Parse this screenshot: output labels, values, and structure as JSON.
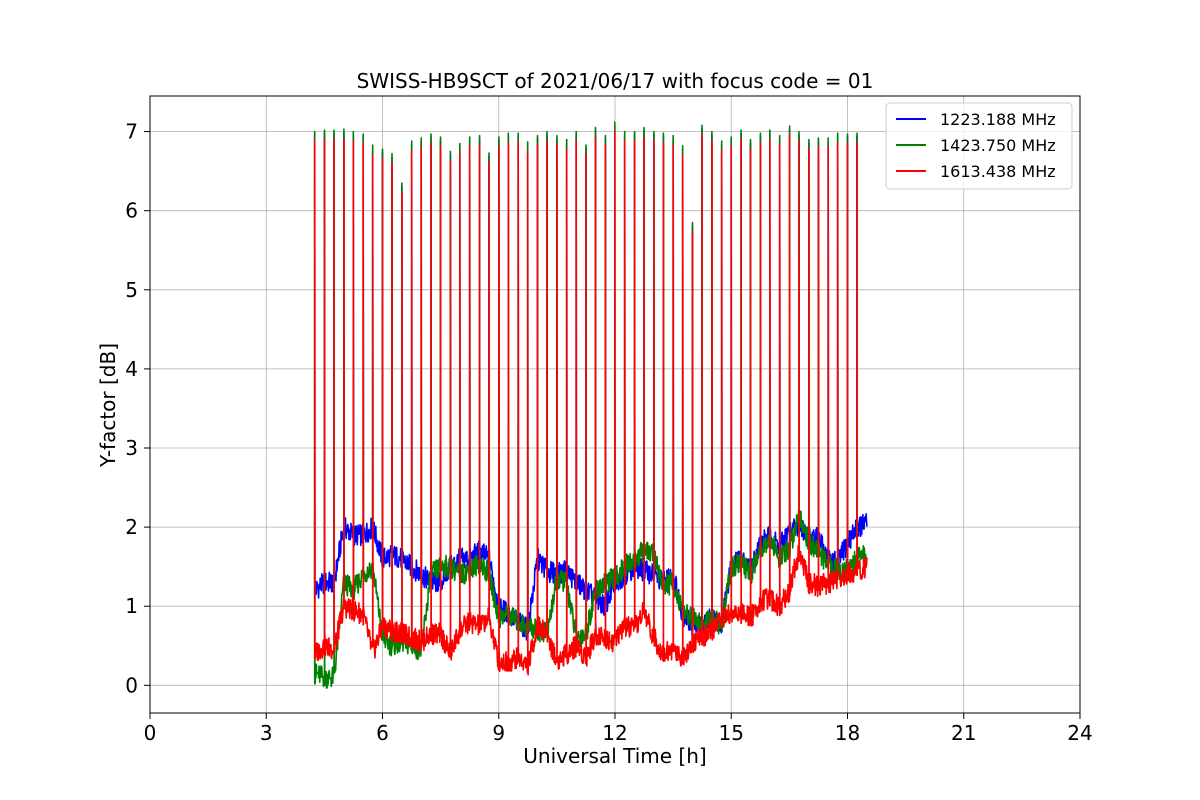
{
  "chart_data": {
    "type": "line",
    "title": "SWISS-HB9SCT of 2021/06/17 with focus code = 01",
    "xlabel": "Universal Time [h]",
    "ylabel": "Y-factor [dB]",
    "xlim": [
      0,
      24
    ],
    "ylim": [
      -0.35,
      7.45
    ],
    "xticks": [
      0,
      3,
      6,
      9,
      12,
      15,
      18,
      21,
      24
    ],
    "yticks": [
      0,
      1,
      2,
      3,
      4,
      5,
      6,
      7
    ],
    "grid": true,
    "legend_position": "top-right",
    "series": [
      {
        "name": "1223.188 MHz",
        "color": "#0000ff",
        "x": [
          4.25,
          4.5,
          4.75,
          5.0,
          5.25,
          5.5,
          5.75,
          6.0,
          6.25,
          6.5,
          6.75,
          7.0,
          7.25,
          7.5,
          7.75,
          8.0,
          8.25,
          8.5,
          8.75,
          9.0,
          9.25,
          9.5,
          9.75,
          10.0,
          10.25,
          10.5,
          10.75,
          11.0,
          11.25,
          11.5,
          11.75,
          12.0,
          12.25,
          12.5,
          12.75,
          13.0,
          13.25,
          13.5,
          13.75,
          14.0,
          14.25,
          14.5,
          14.75,
          15.0,
          15.25,
          15.5,
          15.75,
          16.0,
          16.25,
          16.5,
          16.75,
          17.0,
          17.25,
          17.5,
          17.75,
          18.0,
          18.25,
          18.5
        ],
        "y": [
          1.2,
          1.3,
          1.3,
          2.0,
          1.9,
          1.9,
          2.0,
          1.6,
          1.65,
          1.6,
          1.5,
          1.4,
          1.3,
          1.3,
          1.5,
          1.6,
          1.6,
          1.7,
          1.6,
          1.0,
          0.9,
          0.8,
          0.7,
          1.6,
          1.45,
          1.4,
          1.45,
          1.3,
          1.2,
          1.1,
          1.0,
          1.3,
          1.4,
          1.5,
          1.45,
          1.4,
          1.3,
          1.4,
          0.9,
          0.75,
          0.75,
          0.85,
          0.8,
          1.5,
          1.6,
          1.45,
          1.8,
          1.9,
          1.75,
          1.95,
          2.0,
          1.9,
          1.85,
          1.6,
          1.55,
          1.8,
          2.0,
          2.05
        ]
      },
      {
        "name": "1423.750 MHz",
        "color": "#008000",
        "x": [
          4.25,
          4.5,
          4.75,
          5.0,
          5.25,
          5.5,
          5.75,
          6.0,
          6.25,
          6.5,
          6.75,
          7.0,
          7.25,
          7.5,
          7.75,
          8.0,
          8.25,
          8.5,
          8.75,
          9.0,
          9.25,
          9.5,
          9.75,
          10.0,
          10.25,
          10.5,
          10.75,
          11.0,
          11.25,
          11.5,
          11.75,
          12.0,
          12.25,
          12.5,
          12.75,
          13.0,
          13.25,
          13.5,
          13.75,
          14.0,
          14.25,
          14.5,
          14.75,
          15.0,
          15.25,
          15.5,
          15.75,
          16.0,
          16.25,
          16.5,
          16.75,
          17.0,
          17.25,
          17.5,
          17.75,
          18.0,
          18.25,
          18.5
        ],
        "y": [
          0.15,
          0.1,
          0.1,
          1.3,
          1.2,
          1.4,
          1.5,
          0.6,
          0.5,
          0.55,
          0.5,
          0.45,
          1.4,
          1.5,
          1.5,
          1.4,
          1.45,
          1.55,
          1.4,
          0.85,
          0.9,
          0.8,
          0.75,
          0.7,
          0.65,
          1.35,
          1.3,
          0.6,
          0.65,
          1.2,
          1.3,
          1.35,
          1.5,
          1.6,
          1.7,
          1.65,
          1.25,
          1.3,
          0.9,
          0.85,
          0.75,
          0.85,
          0.75,
          1.5,
          1.55,
          1.4,
          1.75,
          1.85,
          1.6,
          1.7,
          2.2,
          1.8,
          1.7,
          1.5,
          1.45,
          1.45,
          1.6,
          1.65
        ]
      },
      {
        "name": "1613.438 MHz",
        "color": "#ff0000",
        "x": [
          4.25,
          4.5,
          4.75,
          5.0,
          5.25,
          5.5,
          5.75,
          6.0,
          6.25,
          6.5,
          6.75,
          7.0,
          7.25,
          7.5,
          7.75,
          8.0,
          8.25,
          8.5,
          8.75,
          9.0,
          9.25,
          9.5,
          9.75,
          10.0,
          10.25,
          10.5,
          10.75,
          11.0,
          11.25,
          11.5,
          11.75,
          12.0,
          12.25,
          12.5,
          12.75,
          13.0,
          13.25,
          13.5,
          13.75,
          14.0,
          14.25,
          14.5,
          14.75,
          15.0,
          15.25,
          15.5,
          15.75,
          16.0,
          16.25,
          16.5,
          16.75,
          17.0,
          17.25,
          17.5,
          17.75,
          18.0,
          18.25,
          18.5
        ],
        "y": [
          0.4,
          0.5,
          0.45,
          1.0,
          0.95,
          0.9,
          0.4,
          0.75,
          0.7,
          0.65,
          0.6,
          0.55,
          0.65,
          0.65,
          0.4,
          0.7,
          0.8,
          0.75,
          0.85,
          0.3,
          0.3,
          0.35,
          0.25,
          0.75,
          0.65,
          0.3,
          0.4,
          0.5,
          0.35,
          0.65,
          0.6,
          0.55,
          0.75,
          0.7,
          0.95,
          0.6,
          0.4,
          0.45,
          0.35,
          0.55,
          0.6,
          0.7,
          0.85,
          0.9,
          0.9,
          0.85,
          1.05,
          1.1,
          1.0,
          1.2,
          1.7,
          1.3,
          1.25,
          1.3,
          1.35,
          1.4,
          1.45,
          1.5
        ]
      }
    ],
    "calibration_peaks": {
      "x": [
        4.25,
        4.5,
        4.75,
        5.0,
        5.25,
        5.5,
        5.75,
        6.0,
        6.25,
        6.5,
        6.75,
        7.0,
        7.25,
        7.5,
        7.75,
        8.0,
        8.25,
        8.5,
        8.75,
        9.0,
        9.25,
        9.5,
        9.75,
        10.0,
        10.25,
        10.5,
        10.75,
        11.0,
        11.25,
        11.5,
        11.75,
        12.0,
        12.25,
        12.5,
        12.75,
        13.0,
        13.25,
        13.5,
        13.75,
        14.0,
        14.25,
        14.5,
        14.75,
        15.0,
        15.25,
        15.5,
        15.75,
        16.0,
        16.25,
        16.5,
        16.75,
        17.0,
        17.25,
        17.5,
        17.75,
        18.0,
        18.25
      ],
      "y": [
        7.0,
        7.02,
        7.02,
        7.03,
        7.0,
        6.97,
        6.83,
        6.78,
        6.72,
        6.35,
        6.88,
        6.92,
        6.97,
        6.93,
        6.75,
        6.85,
        6.93,
        6.95,
        6.73,
        6.93,
        6.98,
        6.98,
        6.87,
        6.95,
        7.0,
        6.95,
        6.9,
        7.0,
        6.83,
        7.05,
        6.95,
        7.12,
        7.0,
        7.0,
        7.05,
        7.0,
        6.98,
        6.95,
        6.82,
        5.85,
        7.08,
        7.0,
        6.88,
        6.93,
        7.02,
        6.9,
        6.98,
        7.02,
        6.95,
        7.07,
        7.0,
        6.9,
        6.92,
        6.92,
        6.98,
        6.97,
        6.98
      ]
    }
  }
}
